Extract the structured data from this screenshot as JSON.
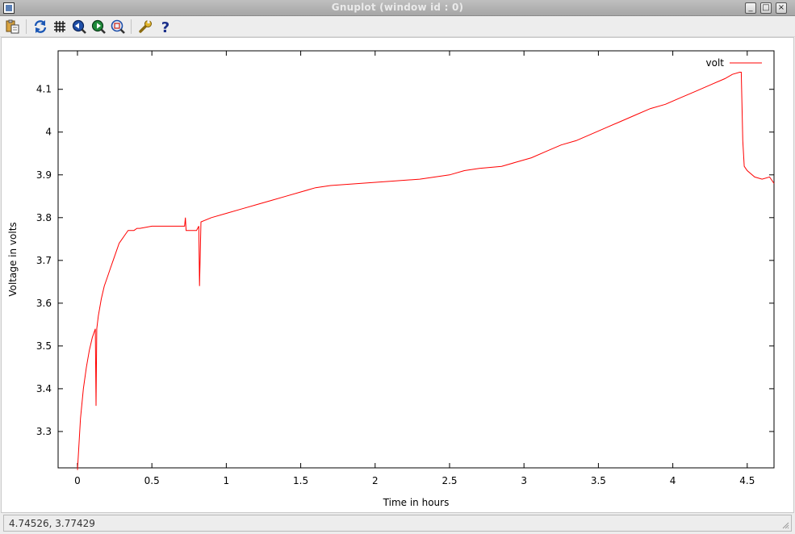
{
  "window": {
    "title": "Gnuplot (window id : 0)",
    "buttons": {
      "minimize": "_",
      "maximize": "□",
      "close": "×"
    }
  },
  "toolbar": {
    "items": [
      {
        "name": "copy-to-clipboard",
        "icon": "clipboard-icon"
      },
      {
        "name": "replot",
        "icon": "refresh-icon"
      },
      {
        "name": "toggle-grid",
        "icon": "grid-icon"
      },
      {
        "name": "previous-zoom",
        "icon": "zoom-back-icon"
      },
      {
        "name": "next-zoom",
        "icon": "zoom-forward-icon"
      },
      {
        "name": "autoscale",
        "icon": "zoom-fit-icon"
      },
      {
        "name": "settings",
        "icon": "wrench-icon"
      },
      {
        "name": "help",
        "icon": "help-icon"
      }
    ]
  },
  "status": {
    "coordinates": "4.74526,  3.77429"
  },
  "colors": {
    "series": "#ff0000",
    "axis": "#000000",
    "background": "#ffffff"
  },
  "chart_data": {
    "type": "line",
    "title": "",
    "xlabel": "Time in hours",
    "ylabel": "Voltage in volts",
    "xlim": [
      -0.13,
      4.68
    ],
    "ylim": [
      3.215,
      4.19
    ],
    "x_ticks": [
      0,
      0.5,
      1,
      1.5,
      2,
      2.5,
      3,
      3.5,
      4,
      4.5
    ],
    "x_tick_labels": [
      "0",
      "0.5",
      "1",
      "1.5",
      "2",
      "2.5",
      "3",
      "3.5",
      "4",
      "4.5"
    ],
    "y_ticks": [
      3.3,
      3.4,
      3.5,
      3.6,
      3.7,
      3.8,
      3.9,
      4.0,
      4.1
    ],
    "y_tick_labels": [
      "3.3",
      "3.4",
      "3.5",
      "3.6",
      "3.7",
      "3.8",
      "3.9",
      "4",
      "4.1"
    ],
    "grid": false,
    "legend": {
      "position": "top-right"
    },
    "series": [
      {
        "name": "volt",
        "color": "#ff0000",
        "x": [
          0.0,
          0.02,
          0.04,
          0.06,
          0.08,
          0.1,
          0.12,
          0.125,
          0.13,
          0.14,
          0.16,
          0.18,
          0.2,
          0.22,
          0.24,
          0.26,
          0.28,
          0.3,
          0.32,
          0.34,
          0.36,
          0.38,
          0.4,
          0.42,
          0.5,
          0.6,
          0.72,
          0.725,
          0.73,
          0.8,
          0.815,
          0.82,
          0.83,
          0.9,
          1.0,
          1.1,
          1.2,
          1.3,
          1.4,
          1.5,
          1.6,
          1.7,
          1.9,
          2.1,
          2.3,
          2.5,
          2.6,
          2.7,
          2.85,
          2.95,
          3.05,
          3.15,
          3.25,
          3.35,
          3.45,
          3.55,
          3.65,
          3.75,
          3.85,
          3.95,
          4.05,
          4.15,
          4.25,
          4.35,
          4.4,
          4.45,
          4.46,
          4.47,
          4.48,
          4.5,
          4.55,
          4.6,
          4.65,
          4.68
        ],
        "y": [
          3.21,
          3.33,
          3.4,
          3.45,
          3.49,
          3.52,
          3.54,
          3.36,
          3.54,
          3.57,
          3.61,
          3.64,
          3.66,
          3.68,
          3.7,
          3.72,
          3.74,
          3.75,
          3.76,
          3.77,
          3.77,
          3.77,
          3.775,
          3.775,
          3.78,
          3.78,
          3.78,
          3.8,
          3.77,
          3.77,
          3.78,
          3.64,
          3.79,
          3.8,
          3.81,
          3.82,
          3.83,
          3.84,
          3.85,
          3.86,
          3.87,
          3.875,
          3.88,
          3.885,
          3.89,
          3.9,
          3.91,
          3.915,
          3.92,
          3.93,
          3.94,
          3.955,
          3.97,
          3.98,
          3.995,
          4.01,
          4.025,
          4.04,
          4.055,
          4.065,
          4.08,
          4.095,
          4.11,
          4.125,
          4.135,
          4.14,
          4.14,
          3.98,
          3.92,
          3.91,
          3.895,
          3.89,
          3.895,
          3.88
        ]
      }
    ]
  }
}
